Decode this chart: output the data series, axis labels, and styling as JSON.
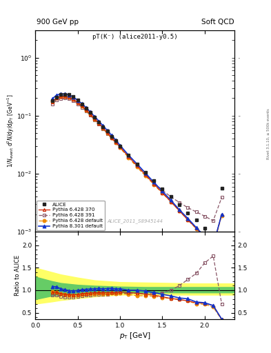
{
  "title_top": "900 GeV pp",
  "title_right": "Soft QCD",
  "subtitle": "pT(K⁻) (alice2011-y0.5)",
  "watermark": "ALICE_2011_S8945144",
  "right_label": "Rivet 3.1.10, ≥ 500k events",
  "xlabel": "p_{T} [GeV]",
  "ylabel_main": "1/N_{evts} d^{2}N/dy/dp_{T} [GeV^{-1}]",
  "ylabel_ratio": "Ratio to ALICE",
  "xlim": [
    0.0,
    2.35
  ],
  "ylim_main": [
    0.001,
    3.0
  ],
  "ylim_ratio": [
    0.35,
    2.3
  ],
  "alice_pt": [
    0.2,
    0.25,
    0.3,
    0.35,
    0.4,
    0.45,
    0.5,
    0.55,
    0.6,
    0.65,
    0.7,
    0.75,
    0.8,
    0.85,
    0.9,
    0.95,
    1.0,
    1.1,
    1.2,
    1.3,
    1.4,
    1.5,
    1.6,
    1.7,
    1.8,
    1.9,
    2.0,
    2.1,
    2.2
  ],
  "alice_y": [
    0.18,
    0.21,
    0.23,
    0.235,
    0.23,
    0.215,
    0.185,
    0.16,
    0.135,
    0.113,
    0.094,
    0.078,
    0.065,
    0.054,
    0.044,
    0.037,
    0.03,
    0.021,
    0.0148,
    0.0105,
    0.0075,
    0.0055,
    0.004,
    0.0029,
    0.0021,
    0.0016,
    0.00115,
    0.00088,
    0.0056
  ],
  "py6_370_pt": [
    0.2,
    0.25,
    0.3,
    0.35,
    0.4,
    0.45,
    0.5,
    0.55,
    0.6,
    0.65,
    0.7,
    0.75,
    0.8,
    0.85,
    0.9,
    0.95,
    1.0,
    1.1,
    1.2,
    1.3,
    1.4,
    1.5,
    1.6,
    1.7,
    1.8,
    1.9,
    2.0,
    2.1,
    2.2
  ],
  "py6_370_y": [
    0.172,
    0.2,
    0.213,
    0.215,
    0.208,
    0.193,
    0.168,
    0.148,
    0.126,
    0.106,
    0.089,
    0.074,
    0.062,
    0.051,
    0.042,
    0.035,
    0.029,
    0.02,
    0.0138,
    0.0096,
    0.0067,
    0.0047,
    0.0033,
    0.0023,
    0.0016,
    0.00115,
    0.00082,
    0.00058,
    0.002
  ],
  "py6_391_pt": [
    0.2,
    0.25,
    0.3,
    0.35,
    0.4,
    0.45,
    0.5,
    0.55,
    0.6,
    0.65,
    0.7,
    0.75,
    0.8,
    0.85,
    0.9,
    0.95,
    1.0,
    1.1,
    1.2,
    1.3,
    1.4,
    1.5,
    1.6,
    1.7,
    1.8,
    1.9,
    2.0,
    2.1,
    2.2
  ],
  "py6_391_y": [
    0.16,
    0.186,
    0.198,
    0.2,
    0.195,
    0.182,
    0.16,
    0.14,
    0.12,
    0.101,
    0.085,
    0.071,
    0.059,
    0.049,
    0.041,
    0.034,
    0.028,
    0.0195,
    0.0138,
    0.0097,
    0.007,
    0.0052,
    0.004,
    0.0032,
    0.0026,
    0.0022,
    0.00185,
    0.00155,
    0.0039
  ],
  "py6_def_pt": [
    0.2,
    0.25,
    0.3,
    0.35,
    0.4,
    0.45,
    0.5,
    0.55,
    0.6,
    0.65,
    0.7,
    0.75,
    0.8,
    0.85,
    0.9,
    0.95,
    1.0,
    1.1,
    1.2,
    1.3,
    1.4,
    1.5,
    1.6,
    1.7,
    1.8,
    1.9,
    2.0,
    2.1,
    2.2
  ],
  "py6_def_y": [
    0.175,
    0.2,
    0.212,
    0.213,
    0.206,
    0.191,
    0.166,
    0.146,
    0.124,
    0.104,
    0.087,
    0.073,
    0.06,
    0.05,
    0.041,
    0.034,
    0.028,
    0.019,
    0.013,
    0.0092,
    0.0065,
    0.0046,
    0.0033,
    0.0023,
    0.0016,
    0.00112,
    0.00079,
    0.00055,
    0.0019
  ],
  "py8_def_pt": [
    0.2,
    0.25,
    0.3,
    0.35,
    0.4,
    0.45,
    0.5,
    0.55,
    0.6,
    0.65,
    0.7,
    0.75,
    0.8,
    0.85,
    0.9,
    0.95,
    1.0,
    1.1,
    1.2,
    1.3,
    1.4,
    1.5,
    1.6,
    1.7,
    1.8,
    1.9,
    2.0,
    2.1,
    2.2
  ],
  "py8_def_y": [
    0.195,
    0.226,
    0.238,
    0.238,
    0.228,
    0.211,
    0.184,
    0.162,
    0.138,
    0.116,
    0.097,
    0.081,
    0.067,
    0.056,
    0.046,
    0.038,
    0.031,
    0.021,
    0.0148,
    0.0103,
    0.0071,
    0.005,
    0.0035,
    0.0024,
    0.0017,
    0.00118,
    0.00083,
    0.00058,
    0.002
  ],
  "ratio_pt": [
    0.2,
    0.25,
    0.3,
    0.35,
    0.4,
    0.45,
    0.5,
    0.55,
    0.6,
    0.65,
    0.7,
    0.75,
    0.8,
    0.85,
    0.9,
    0.95,
    1.0,
    1.1,
    1.2,
    1.3,
    1.4,
    1.5,
    1.6,
    1.7,
    1.8,
    1.9,
    2.0,
    2.1,
    2.2
  ],
  "ratio_py6_370": [
    0.955,
    0.955,
    0.926,
    0.914,
    0.903,
    0.897,
    0.907,
    0.925,
    0.93,
    0.938,
    0.947,
    0.946,
    0.954,
    0.945,
    0.955,
    0.947,
    0.964,
    0.95,
    0.932,
    0.914,
    0.893,
    0.855,
    0.817,
    0.793,
    0.762,
    0.72,
    0.713,
    0.659,
    0.357
  ],
  "ratio_py6_391": [
    0.888,
    0.886,
    0.861,
    0.851,
    0.848,
    0.847,
    0.865,
    0.875,
    0.889,
    0.894,
    0.904,
    0.91,
    0.908,
    0.907,
    0.932,
    0.919,
    0.933,
    0.928,
    0.932,
    0.924,
    0.933,
    0.945,
    1.0,
    1.103,
    1.238,
    1.375,
    1.609,
    1.761,
    0.696
  ],
  "ratio_py6_def": [
    0.972,
    0.952,
    0.922,
    0.906,
    0.896,
    0.888,
    0.897,
    0.913,
    0.919,
    0.92,
    0.926,
    0.936,
    0.923,
    0.926,
    0.932,
    0.919,
    0.933,
    0.905,
    0.878,
    0.876,
    0.867,
    0.836,
    0.817,
    0.793,
    0.762,
    0.7,
    0.687,
    0.625,
    0.339
  ],
  "ratio_py8_def": [
    1.083,
    1.076,
    1.035,
    1.013,
    0.991,
    0.981,
    0.995,
    1.012,
    1.022,
    1.027,
    1.032,
    1.038,
    1.031,
    1.037,
    1.046,
    1.028,
    1.033,
    1.0,
    1.0,
    0.981,
    0.947,
    0.909,
    0.875,
    0.828,
    0.81,
    0.738,
    0.722,
    0.659,
    0.357
  ],
  "band_pt": [
    0.0,
    0.2,
    0.3,
    0.5,
    0.7,
    1.0,
    1.3,
    1.6,
    1.9,
    2.2,
    2.35
  ],
  "band_yellow_lo": [
    0.7,
    0.75,
    0.78,
    0.82,
    0.86,
    0.9,
    0.9,
    0.9,
    0.9,
    0.9,
    0.9
  ],
  "band_yellow_hi": [
    1.5,
    1.4,
    1.35,
    1.28,
    1.22,
    1.18,
    1.17,
    1.16,
    1.15,
    1.15,
    1.15
  ],
  "band_green_lo": [
    0.8,
    0.88,
    0.9,
    0.93,
    0.94,
    0.95,
    0.95,
    0.95,
    0.95,
    0.95,
    0.95
  ],
  "band_green_hi": [
    1.3,
    1.2,
    1.16,
    1.12,
    1.1,
    1.08,
    1.07,
    1.07,
    1.07,
    1.07,
    1.07
  ],
  "color_alice": "#222222",
  "color_py6_370": "#cc2200",
  "color_py6_391": "#885566",
  "color_py6_def": "#ee8800",
  "color_py8_def": "#1133cc",
  "color_yellow": "#ffff66",
  "color_green": "#66cc66"
}
